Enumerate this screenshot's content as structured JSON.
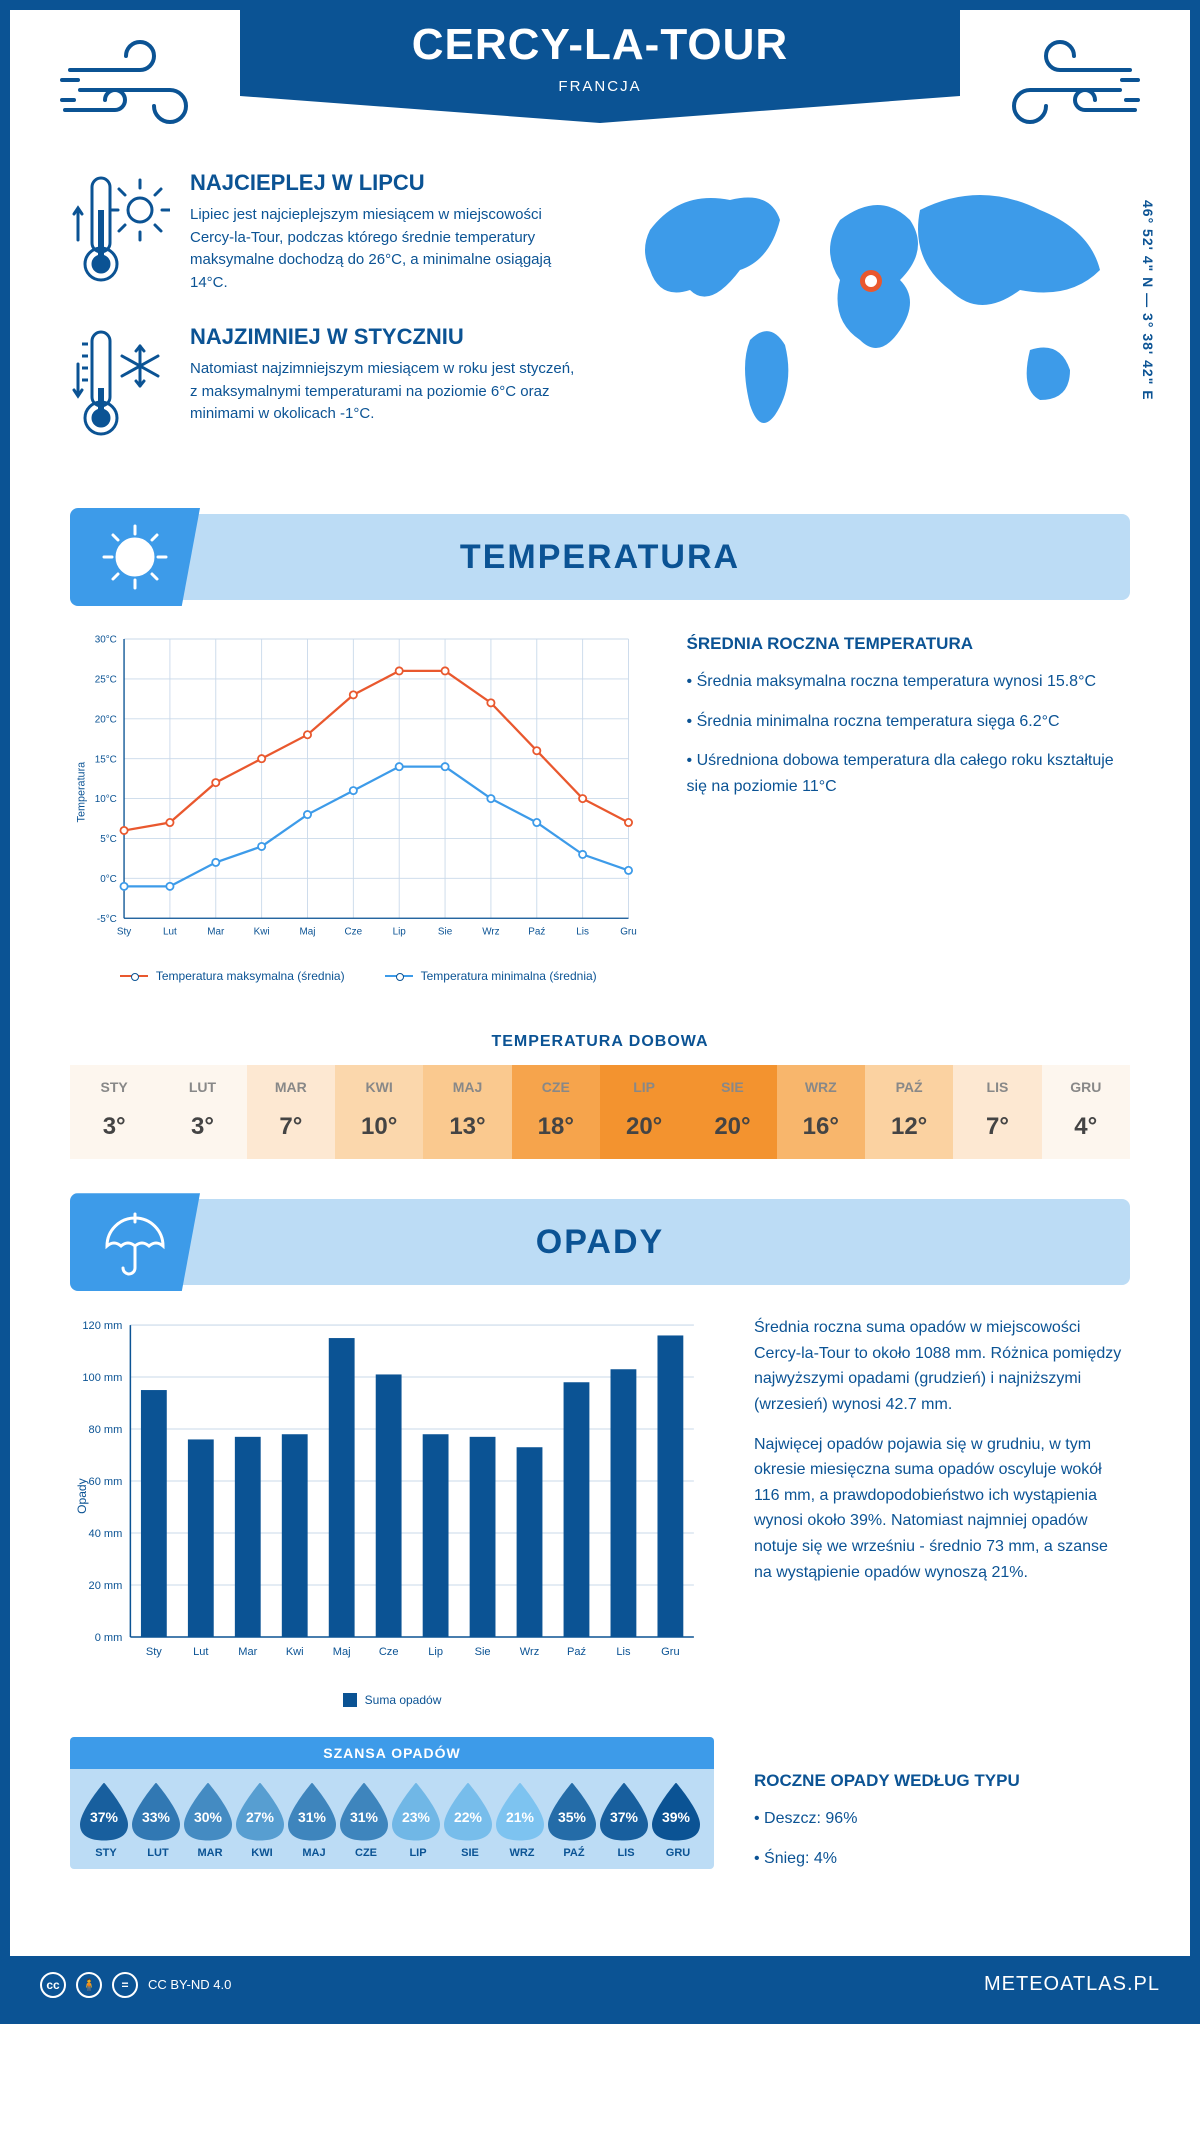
{
  "header": {
    "city": "CERCY-LA-TOUR",
    "country": "FRANCJA",
    "coords": "46° 52' 4\" N — 3° 38' 42\" E"
  },
  "facts": {
    "hot": {
      "title": "NAJCIEPLEJ W LIPCU",
      "text": "Lipiec jest najcieplejszym miesiącem w miejscowości Cercy-la-Tour, podczas którego średnie temperatury maksymalne dochodzą do 26°C, a minimalne osiągają 14°C."
    },
    "cold": {
      "title": "NAJZIMNIEJ W STYCZNIU",
      "text": "Natomiast najzimniejszym miesiącem w roku jest styczeń, z maksymalnymi temperaturami na poziomie 6°C oraz minimami w okolicach -1°C."
    }
  },
  "sections": {
    "temperature": "TEMPERATURA",
    "precip": "OPADY"
  },
  "months": [
    "Sty",
    "Lut",
    "Mar",
    "Kwi",
    "Maj",
    "Cze",
    "Lip",
    "Sie",
    "Wrz",
    "Paź",
    "Lis",
    "Gru"
  ],
  "months_upper": [
    "STY",
    "LUT",
    "MAR",
    "KWI",
    "MAJ",
    "CZE",
    "LIP",
    "SIE",
    "WRZ",
    "PAŹ",
    "LIS",
    "GRU"
  ],
  "temp_chart": {
    "y_label": "Temperatura",
    "y_min": -5,
    "y_max": 30,
    "y_step": 5,
    "max_series": {
      "color": "#e9582e",
      "values": [
        6,
        7,
        12,
        15,
        18,
        23,
        26,
        26,
        22,
        16,
        10,
        7
      ],
      "label": "Temperatura maksymalna (średnia)"
    },
    "min_series": {
      "color": "#3d9be9",
      "values": [
        -1,
        -1,
        2,
        4,
        8,
        11,
        14,
        14,
        10,
        7,
        3,
        1
      ],
      "label": "Temperatura minimalna (średnia)"
    },
    "grid_color": "#c9d9ea",
    "side": {
      "title": "ŚREDNIA ROCZNA TEMPERATURA",
      "p1": "• Średnia maksymalna roczna temperatura wynosi 15.8°C",
      "p2": "• Średnia minimalna roczna temperatura sięga 6.2°C",
      "p3": "• Uśredniona dobowa temperatura dla całego roku kształtuje się na poziomie 11°C"
    }
  },
  "daily": {
    "title": "TEMPERATURA DOBOWA",
    "values": [
      "3°",
      "3°",
      "7°",
      "10°",
      "13°",
      "18°",
      "20°",
      "20°",
      "16°",
      "12°",
      "7°",
      "4°"
    ],
    "colors": [
      "#fdf6ee",
      "#fdf6ee",
      "#fde8d2",
      "#fbd7ac",
      "#fac98f",
      "#f6a44c",
      "#f3932f",
      "#f3932f",
      "#f8b66c",
      "#fbd2a1",
      "#fde8d2",
      "#fdf6ee"
    ]
  },
  "precip_chart": {
    "y_label": "Opady",
    "y_min": 0,
    "y_max": 120,
    "y_step": 20,
    "unit": " mm",
    "bar_color": "#0b5394",
    "values": [
      95,
      76,
      77,
      78,
      115,
      101,
      78,
      77,
      73,
      98,
      103,
      116
    ],
    "legend": "Suma opadów",
    "side": {
      "p1": "Średnia roczna suma opadów w miejscowości Cercy-la-Tour to około 1088 mm. Różnica pomiędzy najwyższymi opadami (grudzień) i najniższymi (wrzesień) wynosi 42.7 mm.",
      "p2": "Najwięcej opadów pojawia się w grudniu, w tym okresie miesięczna suma opadów oscyluje wokół 116 mm, a prawdopodobieństwo ich wystąpienia wynosi około 39%. Natomiast najmniej opadów notuje się we wrześniu - średnio 73 mm, a szanse na wystąpienie opadów wynoszą 21%."
    }
  },
  "chance": {
    "title": "SZANSA OPADÓW",
    "values": [
      37,
      33,
      30,
      27,
      31,
      31,
      23,
      22,
      21,
      35,
      37,
      39
    ],
    "annual": {
      "title": "ROCZNE OPADY WEDŁUG TYPU",
      "p1": "• Deszcz: 96%",
      "p2": "• Śnieg: 4%"
    }
  },
  "footer": {
    "license": "CC BY-ND 4.0",
    "site": "METEOATLAS.PL"
  },
  "palette": {
    "primary": "#0b5394",
    "accent": "#3d9be9",
    "light": "#bcdcf5"
  }
}
